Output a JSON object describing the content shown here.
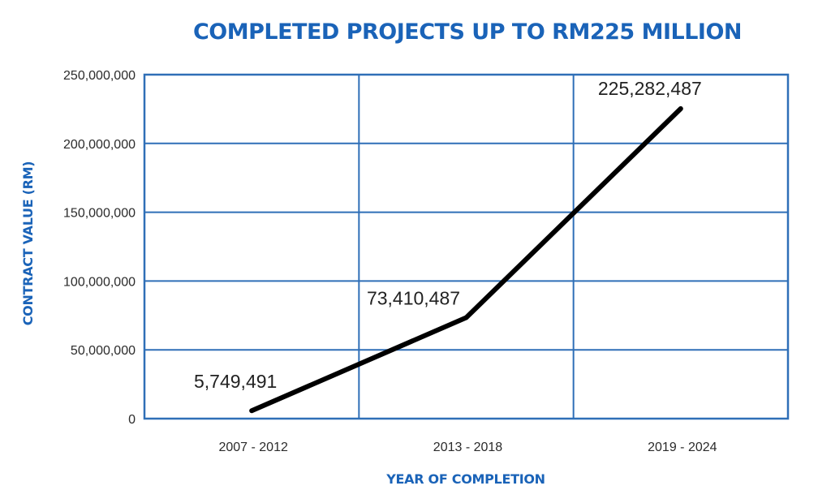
{
  "chart_data": {
    "type": "line",
    "title": "COMPLETED PROJECTS UP TO RM225 MILLION",
    "xlabel": "YEAR OF COMPLETION",
    "ylabel": "CONTRACT VALUE (RM)",
    "categories": [
      "2007 - 2012",
      "2013 - 2018",
      "2019 - 2024"
    ],
    "series": [
      {
        "name": "Contract Value",
        "values": [
          5749491,
          73410487,
          225282487
        ],
        "labels": [
          "5,749,491",
          "73,410,487",
          "225,282,487"
        ],
        "color": "#000000"
      }
    ],
    "ylim": [
      0,
      250000000
    ],
    "yticks": [
      0,
      50000000,
      100000000,
      150000000,
      200000000,
      250000000
    ],
    "ytick_labels": [
      "0",
      "50,000,000",
      "100,000,000",
      "150,000,000",
      "200,000,000",
      "250,000,000"
    ],
    "grid": true,
    "legend": "none",
    "colors": {
      "title": "#1a63b8",
      "grid": "#2f6fb7",
      "line": "#000000"
    }
  }
}
